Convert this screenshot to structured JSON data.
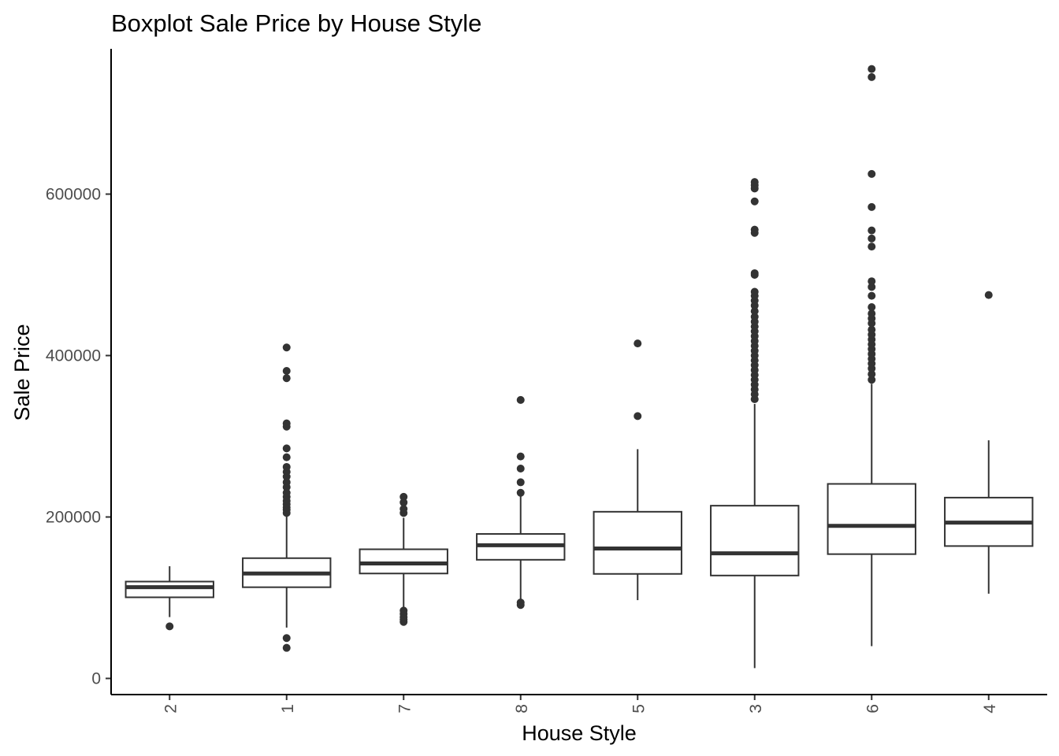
{
  "chart_data": {
    "type": "boxplot",
    "title": "Boxplot Sale Price by House Style",
    "xlabel": "House Style",
    "ylabel": "Sale Price",
    "ylim": [
      -20000,
      780000
    ],
    "yticks": [
      0,
      200000,
      400000,
      600000
    ],
    "ytick_labels": [
      "0",
      "200000",
      "400000",
      "600000"
    ],
    "grid": false,
    "legend": "none",
    "colors": {
      "box_line": "#333333",
      "box_fill": "#ffffff",
      "outlier": "#333333",
      "axis": "#000000",
      "tick_text": "#4d4d4d"
    },
    "categories": [
      "2",
      "1",
      "7",
      "8",
      "5",
      "3",
      "6",
      "4"
    ],
    "boxes": [
      {
        "category": "2",
        "lower_whisker": 76000,
        "q1": 100500,
        "median": 113000,
        "q3": 120000,
        "upper_whisker": 139000,
        "outliers": [
          64500
        ]
      },
      {
        "category": "1",
        "lower_whisker": 63000,
        "q1": 113000,
        "median": 130000,
        "q3": 149000,
        "upper_whisker": 204000,
        "outliers": [
          37900,
          50000,
          205000,
          209000,
          212000,
          216000,
          220000,
          225000,
          230000,
          237000,
          243000,
          250000,
          256000,
          262000,
          274000,
          285000,
          312000,
          316000,
          372000,
          381000,
          410000
        ]
      },
      {
        "category": "7",
        "lower_whisker": 88000,
        "q1": 130000,
        "median": 142500,
        "q3": 160000,
        "upper_whisker": 199000,
        "outliers": [
          70000,
          73000,
          76000,
          80000,
          84000,
          205000,
          210000,
          218000,
          225000
        ]
      },
      {
        "category": "8",
        "lower_whisker": 97000,
        "q1": 147000,
        "median": 165000,
        "q3": 179000,
        "upper_whisker": 226000,
        "outliers": [
          91000,
          94000,
          230000,
          243000,
          260000,
          275000,
          345000
        ]
      },
      {
        "category": "5",
        "lower_whisker": 97000,
        "q1": 129500,
        "median": 161000,
        "q3": 206500,
        "upper_whisker": 284000,
        "outliers": [
          325000,
          415000
        ]
      },
      {
        "category": "3",
        "lower_whisker": 12800,
        "q1": 127500,
        "median": 155000,
        "q3": 214000,
        "upper_whisker": 340000,
        "outliers": [
          346000,
          352000,
          358000,
          364000,
          370000,
          376000,
          382000,
          388000,
          394000,
          400000,
          406000,
          412000,
          418000,
          424000,
          430000,
          436000,
          442000,
          448000,
          455000,
          462000,
          468000,
          474000,
          479000,
          500000,
          502000,
          552000,
          556000,
          591000,
          607000,
          611000,
          615000
        ]
      },
      {
        "category": "6",
        "lower_whisker": 40000,
        "q1": 154000,
        "median": 189000,
        "q3": 241000,
        "upper_whisker": 365000,
        "outliers": [
          370000,
          377000,
          384000,
          390000,
          396000,
          402000,
          408000,
          414000,
          420000,
          426000,
          432000,
          440000,
          446000,
          452000,
          460000,
          474000,
          485000,
          492000,
          535000,
          545000,
          555000,
          584000,
          625000,
          745000,
          755000
        ]
      },
      {
        "category": "4",
        "lower_whisker": 105000,
        "q1": 164000,
        "median": 193000,
        "q3": 224000,
        "upper_whisker": 295000,
        "outliers": [
          475000
        ]
      }
    ]
  }
}
